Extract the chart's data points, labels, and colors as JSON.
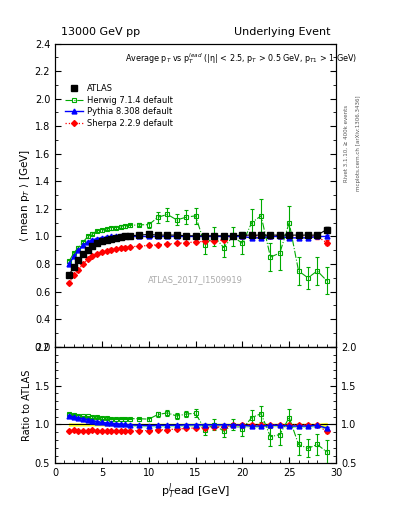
{
  "title_left": "13000 GeV pp",
  "title_right": "Underlying Event",
  "ylabel_main": "⟨ mean p$_T$ ⟩ [GeV]",
  "ylabel_ratio": "Ratio to ATLAS",
  "xlabel": "p$_T^{l}$ead [GeV]",
  "annotation": "Average p$_T$ vs p$_T^{lead}$ (|η| < 2.5, p$_T$ > 0.5 GeV, p$_{T1}$ > 1 GeV)",
  "watermark": "ATLAS_2017_I1509919",
  "right_label1": "Rivet 3.1.10, ≥ 400k events",
  "right_label2": "mcplots.cern.ch [arXiv:1306.3436]",
  "ylim_main": [
    0.2,
    2.4
  ],
  "ylim_ratio": [
    0.5,
    2.0
  ],
  "xlim": [
    0,
    30
  ],
  "atlas_x": [
    1.5,
    2.0,
    2.5,
    3.0,
    3.5,
    4.0,
    4.5,
    5.0,
    5.5,
    6.0,
    6.5,
    7.0,
    7.5,
    8.0,
    9.0,
    10.0,
    11.0,
    12.0,
    13.0,
    14.0,
    15.0,
    16.0,
    17.0,
    18.0,
    19.0,
    20.0,
    21.0,
    22.0,
    23.0,
    24.0,
    25.0,
    26.0,
    27.0,
    28.0,
    29.0
  ],
  "atlas_y": [
    0.72,
    0.78,
    0.83,
    0.87,
    0.905,
    0.93,
    0.95,
    0.965,
    0.975,
    0.985,
    0.99,
    0.995,
    1.0,
    1.005,
    1.01,
    1.015,
    1.01,
    1.01,
    1.01,
    1.005,
    1.005,
    1.005,
    1.005,
    1.005,
    1.005,
    1.01,
    1.01,
    1.01,
    1.01,
    1.01,
    1.01,
    1.01,
    1.01,
    1.01,
    1.05
  ],
  "atlas_yerr": [
    0.01,
    0.01,
    0.01,
    0.01,
    0.01,
    0.01,
    0.01,
    0.01,
    0.01,
    0.01,
    0.008,
    0.008,
    0.008,
    0.008,
    0.008,
    0.008,
    0.008,
    0.008,
    0.008,
    0.008,
    0.008,
    0.008,
    0.008,
    0.008,
    0.008,
    0.008,
    0.008,
    0.008,
    0.008,
    0.008,
    0.008,
    0.008,
    0.008,
    0.008,
    0.02
  ],
  "herwig_x": [
    1.5,
    2.0,
    2.5,
    3.0,
    3.5,
    4.0,
    4.5,
    5.0,
    5.5,
    6.0,
    6.5,
    7.0,
    7.5,
    8.0,
    9.0,
    10.0,
    11.0,
    12.0,
    13.0,
    14.0,
    15.0,
    16.0,
    17.0,
    18.0,
    19.0,
    20.0,
    21.0,
    22.0,
    23.0,
    24.0,
    25.0,
    26.0,
    27.0,
    28.0,
    29.0
  ],
  "herwig_y": [
    0.82,
    0.88,
    0.92,
    0.96,
    1.0,
    1.02,
    1.04,
    1.045,
    1.055,
    1.06,
    1.065,
    1.07,
    1.075,
    1.08,
    1.085,
    1.085,
    1.14,
    1.16,
    1.12,
    1.14,
    1.15,
    0.94,
    1.0,
    0.92,
    1.0,
    0.95,
    1.1,
    1.15,
    0.85,
    0.88,
    1.1,
    0.75,
    0.7,
    0.75,
    0.68
  ],
  "herwig_yerr": [
    0.01,
    0.01,
    0.01,
    0.01,
    0.01,
    0.01,
    0.01,
    0.01,
    0.01,
    0.01,
    0.01,
    0.01,
    0.01,
    0.01,
    0.01,
    0.02,
    0.04,
    0.05,
    0.04,
    0.05,
    0.06,
    0.07,
    0.07,
    0.07,
    0.07,
    0.08,
    0.1,
    0.12,
    0.1,
    0.12,
    0.12,
    0.1,
    0.08,
    0.1,
    0.1
  ],
  "pythia_x": [
    1.5,
    2.0,
    2.5,
    3.0,
    3.5,
    4.0,
    4.5,
    5.0,
    5.5,
    6.0,
    6.5,
    7.0,
    7.5,
    8.0,
    9.0,
    10.0,
    11.0,
    12.0,
    13.0,
    14.0,
    15.0,
    16.0,
    17.0,
    18.0,
    19.0,
    20.0,
    21.0,
    22.0,
    23.0,
    24.0,
    25.0,
    26.0,
    27.0,
    28.0,
    29.0
  ],
  "pythia_y": [
    0.8,
    0.855,
    0.9,
    0.935,
    0.96,
    0.975,
    0.985,
    0.99,
    0.995,
    1.0,
    1.0,
    1.0,
    1.0,
    1.0,
    1.0,
    1.0,
    1.0,
    1.0,
    1.0,
    1.0,
    1.0,
    1.0,
    1.0,
    1.0,
    1.0,
    1.0,
    0.99,
    0.99,
    1.0,
    1.0,
    0.99,
    0.99,
    0.99,
    1.0,
    1.0
  ],
  "pythia_yerr": [
    0.005,
    0.005,
    0.005,
    0.005,
    0.005,
    0.005,
    0.005,
    0.005,
    0.005,
    0.005,
    0.005,
    0.005,
    0.005,
    0.005,
    0.005,
    0.005,
    0.005,
    0.005,
    0.005,
    0.005,
    0.005,
    0.005,
    0.005,
    0.005,
    0.005,
    0.005,
    0.005,
    0.005,
    0.005,
    0.005,
    0.005,
    0.005,
    0.005,
    0.005,
    0.01
  ],
  "sherpa_x": [
    1.5,
    2.0,
    2.5,
    3.0,
    3.5,
    4.0,
    4.5,
    5.0,
    5.5,
    6.0,
    6.5,
    7.0,
    7.5,
    8.0,
    9.0,
    10.0,
    11.0,
    12.0,
    13.0,
    14.0,
    15.0,
    16.0,
    17.0,
    18.0,
    19.0,
    20.0,
    21.0,
    22.0,
    23.0,
    24.0,
    25.0,
    26.0,
    27.0,
    28.0,
    29.0
  ],
  "sherpa_y": [
    0.66,
    0.72,
    0.76,
    0.8,
    0.835,
    0.86,
    0.875,
    0.885,
    0.895,
    0.905,
    0.91,
    0.915,
    0.92,
    0.925,
    0.93,
    0.935,
    0.94,
    0.945,
    0.95,
    0.955,
    0.96,
    0.965,
    0.97,
    0.975,
    1.0,
    1.005,
    1.005,
    1.005,
    1.005,
    1.005,
    1.005,
    1.005,
    1.005,
    1.0,
    0.955
  ],
  "sherpa_yerr": [
    0.008,
    0.008,
    0.008,
    0.008,
    0.008,
    0.008,
    0.008,
    0.008,
    0.008,
    0.008,
    0.008,
    0.008,
    0.008,
    0.008,
    0.008,
    0.008,
    0.008,
    0.008,
    0.008,
    0.008,
    0.01,
    0.01,
    0.01,
    0.01,
    0.01,
    0.015,
    0.015,
    0.015,
    0.015,
    0.015,
    0.015,
    0.015,
    0.015,
    0.015,
    0.02
  ],
  "atlas_color": "black",
  "herwig_color": "#00aa00",
  "pythia_color": "blue",
  "sherpa_color": "red",
  "herwig_ratio": [
    1.137,
    1.128,
    1.108,
    1.103,
    1.104,
    1.097,
    1.095,
    1.083,
    1.082,
    1.076,
    1.076,
    1.075,
    1.075,
    1.075,
    1.074,
    1.069,
    1.129,
    1.149,
    1.109,
    1.134,
    1.144,
    0.935,
    0.995,
    0.915,
    0.995,
    0.941,
    1.089,
    1.139,
    0.842,
    0.871,
    1.089,
    0.743,
    0.693,
    0.743,
    0.648
  ],
  "pythia_ratio": [
    1.111,
    1.096,
    1.084,
    1.074,
    1.061,
    1.048,
    1.037,
    1.026,
    1.02,
    1.015,
    1.01,
    1.005,
    1.0,
    0.995,
    0.99,
    0.985,
    0.99,
    0.99,
    0.99,
    0.995,
    0.995,
    0.995,
    0.995,
    0.995,
    0.995,
    0.99,
    0.98,
    0.98,
    0.99,
    0.99,
    0.98,
    0.98,
    0.98,
    0.99,
    0.952
  ],
  "sherpa_ratio": [
    0.917,
    0.923,
    0.916,
    0.92,
    0.922,
    0.925,
    0.921,
    0.918,
    0.918,
    0.919,
    0.919,
    0.92,
    0.92,
    0.92,
    0.921,
    0.921,
    0.93,
    0.934,
    0.941,
    0.95,
    0.955,
    0.96,
    0.965,
    0.97,
    0.995,
    0.995,
    0.995,
    0.995,
    0.995,
    0.995,
    0.995,
    0.995,
    0.995,
    0.99,
    0.91
  ],
  "yticks_main": [
    0.2,
    0.4,
    0.6,
    0.8,
    1.0,
    1.2,
    1.4,
    1.6,
    1.8,
    2.0,
    2.2,
    2.4
  ],
  "yticks_ratio": [
    0.5,
    1.0,
    1.5,
    2.0
  ],
  "xticks": [
    0,
    5,
    10,
    15,
    20,
    25,
    30
  ]
}
